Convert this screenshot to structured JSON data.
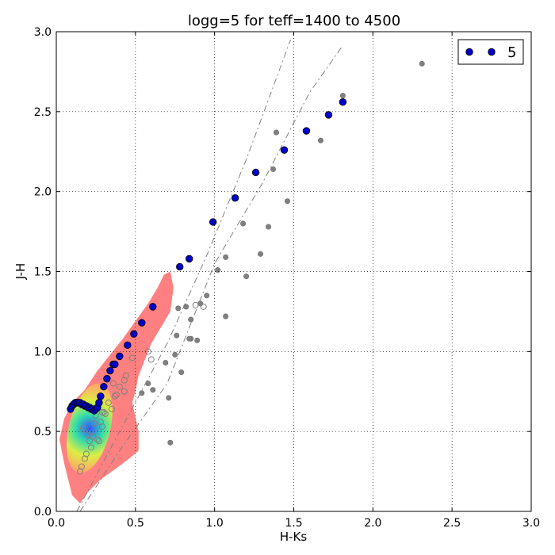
{
  "chart_data": {
    "type": "scatter",
    "title": "logg=5 for teff=1400 to 4500",
    "xlabel": "H-Ks",
    "ylabel": "J-H",
    "xlim": [
      0.0,
      3.0
    ],
    "ylim": [
      0.0,
      3.0
    ],
    "xticks": [
      "0.0",
      "0.5",
      "1.0",
      "1.5",
      "2.0",
      "2.5",
      "3.0"
    ],
    "yticks": [
      "0.0",
      "0.5",
      "1.0",
      "1.5",
      "2.0",
      "2.5",
      "3.0"
    ],
    "grid": true,
    "legend_position": "top-right",
    "colors": {
      "series": "#0000cc",
      "series_edge": "#000000",
      "density": "#ff8080",
      "gray_points": "#808080",
      "dash_lines": "#808080"
    },
    "series": [
      {
        "name": "5",
        "x": [
          0.09,
          0.1,
          0.11,
          0.12,
          0.13,
          0.14,
          0.15,
          0.16,
          0.17,
          0.18,
          0.19,
          0.2,
          0.21,
          0.22,
          0.23,
          0.24,
          0.25,
          0.26,
          0.27,
          0.28,
          0.3,
          0.32,
          0.34,
          0.36,
          0.37,
          0.4,
          0.45,
          0.49,
          0.54,
          0.61,
          0.78,
          0.84,
          0.99,
          1.13,
          1.26,
          1.44,
          1.58,
          1.72,
          1.81
        ],
        "y": [
          0.64,
          0.66,
          0.67,
          0.68,
          0.68,
          0.68,
          0.68,
          0.67,
          0.67,
          0.66,
          0.66,
          0.65,
          0.65,
          0.64,
          0.64,
          0.63,
          0.64,
          0.65,
          0.68,
          0.72,
          0.78,
          0.83,
          0.88,
          0.92,
          0.92,
          0.97,
          1.04,
          1.11,
          1.18,
          1.28,
          1.53,
          1.58,
          1.81,
          1.96,
          2.12,
          2.26,
          2.38,
          2.48,
          2.56
        ]
      }
    ],
    "background_points": {
      "gray_filled": {
        "x": [
          2.31,
          1.81,
          1.67,
          1.39,
          1.37,
          1.46,
          1.34,
          1.18,
          1.29,
          1.07,
          1.02,
          1.2,
          0.95,
          0.91,
          1.07,
          0.85,
          0.89,
          0.82,
          0.85,
          0.77,
          0.76,
          0.84,
          0.79,
          0.75,
          0.69,
          0.72,
          0.54,
          0.58,
          0.61,
          0.71
        ],
        "y": [
          2.8,
          2.6,
          2.32,
          2.37,
          2.14,
          1.94,
          1.78,
          1.8,
          1.61,
          1.59,
          1.51,
          1.47,
          1.35,
          1.3,
          1.22,
          1.08,
          1.07,
          1.28,
          1.2,
          1.27,
          1.1,
          1.08,
          0.87,
          0.98,
          0.93,
          0.43,
          0.74,
          0.8,
          0.76,
          0.71
        ]
      },
      "gray_open": {
        "x": [
          0.93,
          0.88,
          0.58,
          0.6,
          0.48,
          0.44,
          0.43,
          0.36,
          0.38,
          0.33,
          0.31,
          0.28,
          0.29,
          0.25,
          0.23,
          0.27,
          0.22,
          0.19,
          0.18,
          0.16,
          0.21,
          0.17,
          0.24,
          0.2,
          0.29,
          0.15,
          0.26,
          0.3,
          0.37,
          0.35,
          0.43,
          0.4
        ],
        "y": [
          1.28,
          1.29,
          1.0,
          0.95,
          0.96,
          0.85,
          0.75,
          0.8,
          0.73,
          0.68,
          0.61,
          0.56,
          0.53,
          0.6,
          0.47,
          0.44,
          0.4,
          0.36,
          0.33,
          0.28,
          0.44,
          0.52,
          0.55,
          0.48,
          0.62,
          0.25,
          0.45,
          0.62,
          0.72,
          0.64,
          0.82,
          0.78
        ]
      }
    },
    "reference_lines": [
      {
        "x": [
          0.13,
          0.4,
          0.7,
          0.95,
          1.2,
          1.48
        ],
        "y": [
          0.0,
          0.5,
          1.05,
          1.6,
          2.2,
          2.95
        ]
      },
      {
        "x": [
          0.15,
          0.4,
          0.7,
          1.0,
          1.3,
          1.6,
          1.8
        ],
        "y": [
          0.0,
          0.38,
          0.8,
          1.55,
          2.05,
          2.62,
          2.9
        ]
      }
    ],
    "density_region": {
      "x": [
        0.1,
        0.05,
        0.02,
        0.05,
        0.1,
        0.18,
        0.26,
        0.34,
        0.42,
        0.5,
        0.58,
        0.64,
        0.68,
        0.72,
        0.74,
        0.72,
        0.66,
        0.6,
        0.56,
        0.52,
        0.5,
        0.48,
        0.52,
        0.52,
        0.46,
        0.38,
        0.28,
        0.2,
        0.15
      ],
      "y": [
        0.1,
        0.3,
        0.45,
        0.58,
        0.68,
        0.76,
        0.88,
        0.98,
        1.08,
        1.19,
        1.3,
        1.4,
        1.48,
        1.5,
        1.4,
        1.25,
        1.15,
        1.05,
        0.95,
        0.85,
        0.75,
        0.68,
        0.5,
        0.38,
        0.33,
        0.27,
        0.2,
        0.12,
        0.05
      ]
    }
  }
}
